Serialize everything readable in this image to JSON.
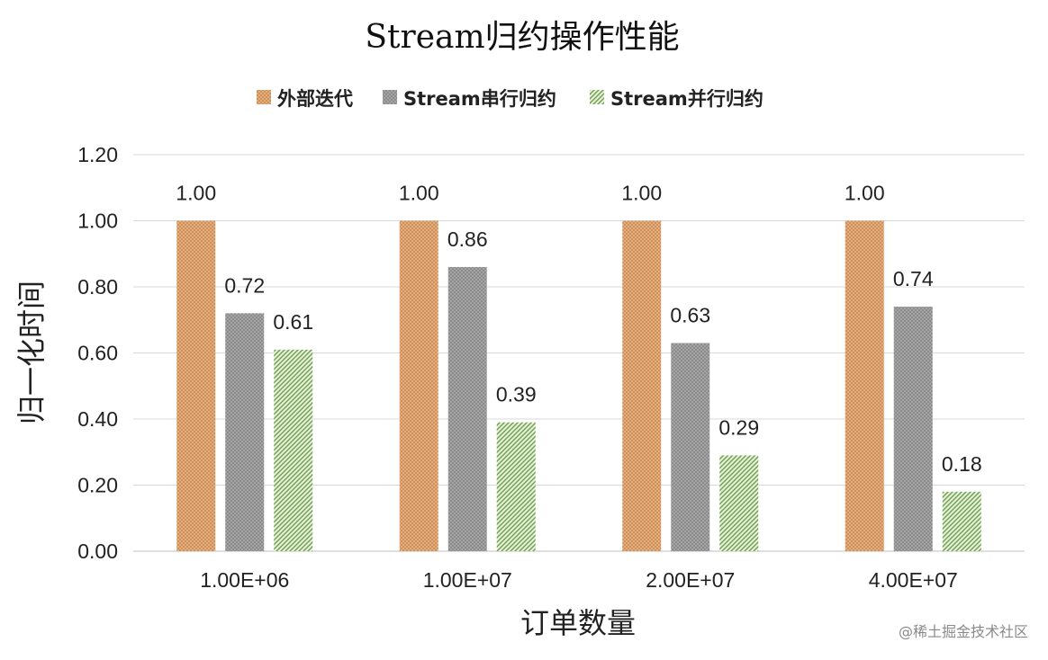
{
  "chart_data": {
    "type": "bar",
    "title": "Stream归约操作性能",
    "xlabel": "订单数量",
    "ylabel": "归一化时间",
    "categories": [
      "1.00E+06",
      "1.00E+07",
      "2.00E+07",
      "4.00E+07"
    ],
    "series": [
      {
        "name": "外部迭代",
        "values": [
          1.0,
          1.0,
          1.0,
          1.0
        ],
        "color": "#e8b07e",
        "pattern": "crosshatch"
      },
      {
        "name": "Stream串行归约",
        "values": [
          0.72,
          0.86,
          0.63,
          0.74
        ],
        "color": "#9a9a9a",
        "pattern": "dots"
      },
      {
        "name": "Stream并行归约",
        "values": [
          0.61,
          0.39,
          0.29,
          0.18
        ],
        "color": "#7fae5a",
        "pattern": "diagonal"
      }
    ],
    "ylim": [
      0,
      1.2
    ],
    "yticks": [
      "0.00",
      "0.20",
      "0.40",
      "0.60",
      "0.80",
      "1.00",
      "1.20"
    ],
    "data_labels": true,
    "grid": true,
    "legend_position": "top"
  },
  "watermark": "@稀土掘金技术社区"
}
